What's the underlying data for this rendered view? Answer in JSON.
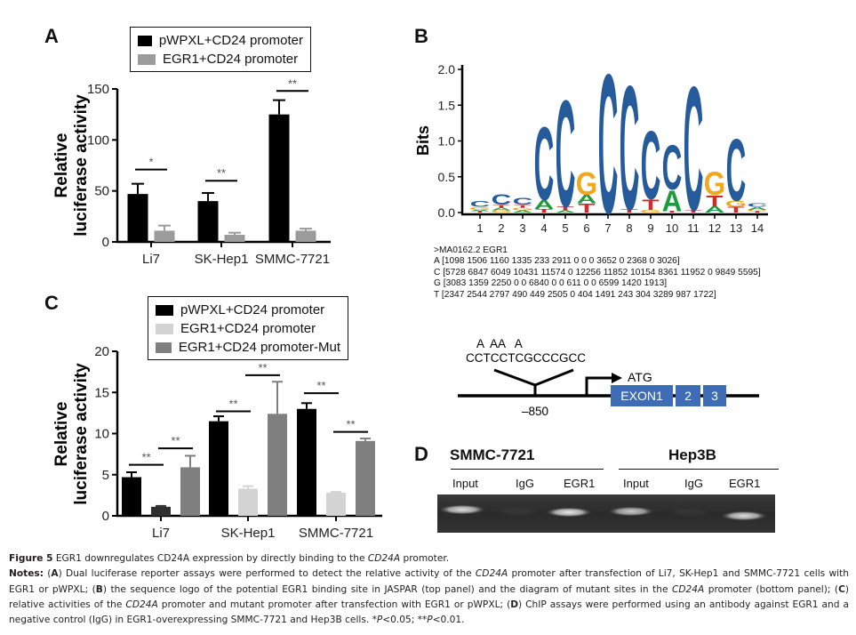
{
  "panels": {
    "A": {
      "letter": "A"
    },
    "B": {
      "letter": "B"
    },
    "C": {
      "letter": "C"
    },
    "D": {
      "letter": "D"
    }
  },
  "chart_data": [
    {
      "id": "A",
      "type": "bar",
      "title": "",
      "xlabel": "",
      "ylabel_line1": "Relative",
      "ylabel_line2": "luciferase activity",
      "ylim": [
        0,
        150
      ],
      "yticks": [
        0,
        50,
        100,
        150
      ],
      "categories": [
        "Li7",
        "SK-Hep1",
        "SMMC-7721"
      ],
      "legend_position": "top",
      "series": [
        {
          "name": "pWPXL+CD24 promoter",
          "color": "#000000",
          "values": [
            47,
            40,
            125
          ],
          "errors": [
            10,
            8,
            14
          ]
        },
        {
          "name": "EGR1+CD24 promoter",
          "color": "#9b9b9b",
          "values": [
            11,
            7,
            11
          ],
          "errors": [
            5,
            2,
            2
          ]
        }
      ],
      "significance": [
        {
          "category": 0,
          "label": "*",
          "y": 71
        },
        {
          "category": 1,
          "label": "**",
          "y": 60
        },
        {
          "category": 2,
          "label": "**",
          "y": 148
        }
      ]
    },
    {
      "id": "B",
      "type": "sequence-logo",
      "title": "",
      "ylabel": "Bits",
      "ylim": [
        0,
        2.0
      ],
      "yticks": [
        "0.0",
        "0.5",
        "1.0",
        "1.5",
        "2.0"
      ],
      "positions": [
        "1",
        "2",
        "3",
        "4",
        "5",
        "6",
        "7",
        "8",
        "9",
        "10",
        "11",
        "12",
        "13",
        "14"
      ],
      "colors": {
        "A": "#1f9a3c",
        "C": "#255a9b",
        "G": "#f0a81e",
        "T": "#d42a2a"
      },
      "stacks": [
        [
          [
            "T",
            0.02
          ],
          [
            "A",
            0.02
          ],
          [
            "G",
            0.04
          ],
          [
            "C",
            0.08
          ]
        ],
        [
          [
            "G",
            0.03
          ],
          [
            "A",
            0.04
          ],
          [
            "T",
            0.04
          ],
          [
            "C",
            0.15
          ]
        ],
        [
          [
            "A",
            0.03
          ],
          [
            "G",
            0.04
          ],
          [
            "T",
            0.04
          ],
          [
            "C",
            0.1
          ]
        ],
        [
          [
            "T",
            0.05
          ],
          [
            "A",
            0.13
          ],
          [
            "C",
            1.05
          ]
        ],
        [
          [
            "A",
            0.03
          ],
          [
            "T",
            0.06
          ],
          [
            "C",
            1.53
          ]
        ],
        [
          [
            "T",
            0.13
          ],
          [
            "A",
            0.12
          ],
          [
            "G",
            0.32
          ]
        ],
        [
          [
            "C",
            2.0
          ]
        ],
        [
          [
            "T",
            0.05
          ],
          [
            "C",
            1.78
          ]
        ],
        [
          [
            "G",
            0.04
          ],
          [
            "T",
            0.15
          ],
          [
            "C",
            0.98
          ]
        ],
        [
          [
            "T",
            0.02
          ],
          [
            "A",
            0.3
          ],
          [
            "C",
            0.64
          ]
        ],
        [
          [
            "T",
            0.04
          ],
          [
            "C",
            1.78
          ]
        ],
        [
          [
            "A",
            0.09
          ],
          [
            "T",
            0.16
          ],
          [
            "G",
            0.33
          ]
        ],
        [
          [
            "T",
            0.08
          ],
          [
            "G",
            0.09
          ],
          [
            "C",
            0.89
          ]
        ],
        [
          [
            "T",
            0.02
          ],
          [
            "G",
            0.02
          ],
          [
            "A",
            0.04
          ],
          [
            "C",
            0.05
          ]
        ]
      ]
    },
    {
      "id": "C",
      "type": "bar",
      "title": "",
      "xlabel": "",
      "ylabel_line1": "Relative",
      "ylabel_line2": "luciferase activity",
      "ylim": [
        0,
        20
      ],
      "yticks": [
        0,
        5,
        10,
        15,
        20
      ],
      "categories": [
        "Li7",
        "SK-Hep1",
        "SMMC-7721"
      ],
      "legend_position": "top",
      "series": [
        {
          "name": "pWPXL+CD24 promoter",
          "color": "#000000",
          "values": [
            4.7,
            11.5,
            13.0
          ],
          "errors": [
            0.6,
            0.6,
            0.7
          ]
        },
        {
          "name": "EGR1+CD24 promoter",
          "color": "#d3d3d3",
          "values": [
            1.1,
            3.3,
            2.8
          ],
          "errors": [
            0.1,
            0.3,
            0.1
          ]
        },
        {
          "name": "EGR1+CD24 promoter-Mut",
          "color": "#7f7f7f",
          "values": [
            5.9,
            12.4,
            9.1
          ],
          "errors": [
            1.4,
            3.9,
            0.3
          ]
        }
      ],
      "series_color_overrides": {
        "0-1": "#2f2f2f"
      },
      "significance": [
        {
          "from": [
            0,
            0
          ],
          "to": [
            0,
            1
          ],
          "label": "**",
          "y": 6.2
        },
        {
          "from": [
            0,
            1
          ],
          "to": [
            0,
            2
          ],
          "label": "**",
          "y": 8.2
        },
        {
          "from": [
            1,
            0
          ],
          "to": [
            1,
            1
          ],
          "label": "**",
          "y": 12.7
        },
        {
          "from": [
            1,
            1
          ],
          "to": [
            1,
            2
          ],
          "label": "**",
          "y": 17.1
        },
        {
          "from": [
            2,
            0
          ],
          "to": [
            2,
            1
          ],
          "label": "**",
          "y": 14.9
        },
        {
          "from": [
            2,
            1
          ],
          "to": [
            2,
            2
          ],
          "label": "**",
          "y": 10.2
        }
      ]
    }
  ],
  "matrix": {
    "header": ">MA0162.2 EGR1",
    "rows": [
      "A [1098 1506 1160 1335 233 2911 0 0 0 3652 0 2368 0 3026]",
      "C [5728 6847 6049 10431 11574 0 12256 11852 10154 8361 11952 0 9849 5595]",
      "G [3083 1359 2250 0 0 6840 0 0 611 0 0 6599 1420 1913]",
      "T [2347 2544 2797 490 449 2505 0 404 1491 243 304 3289 987 1722]"
    ]
  },
  "promoter_diagram": {
    "mutations": "A  AA   A",
    "sequence": "CCTCCTCGCCCGCC",
    "position_label": "–850",
    "atg_label": "ATG",
    "exons": [
      "EXON1",
      "2",
      "3"
    ],
    "exon_color": "#3e6db5"
  },
  "chip": {
    "groups": [
      {
        "name": "SMMC-7721",
        "lanes": [
          "Input",
          "IgG",
          "EGR1"
        ]
      },
      {
        "name": "Hep3B",
        "lanes": [
          "Input",
          "IgG",
          "EGR1"
        ]
      }
    ],
    "band_intensity": [
      0.85,
      0.05,
      0.9,
      0.75,
      0.05,
      0.85
    ]
  },
  "caption": {
    "figure_label": "Figure 5",
    "title": " EGR1 downregulates CD24A expression by directly binding to the ",
    "title_gene": "CD24A",
    "title_end": " promoter.",
    "notes_label": "Notes:",
    "notes_A_pre": " (",
    "notes_A_letter": "A",
    "notes_A_text": ") Dual luciferase reporter assays were performed to detect the relative activity of the ",
    "notes_A_gene": "CD24A",
    "notes_A_text2": " promoter after transfection of Li7, SK-Hep1 and SMMC-7721 cells with EGR1 or pWPXL; (",
    "notes_B_letter": "B",
    "notes_B_text": ") the sequence logo of the potential EGR1 binding site in JASPAR (top panel) and the diagram of mutant sites in the ",
    "notes_B_gene": "CD24A",
    "notes_B_text2": " promoter (bottom panel); (",
    "notes_C_letter": "C",
    "notes_C_text": ") relative activities of the ",
    "notes_C_gene": "CD24A",
    "notes_C_text2": " promoter and mutant promoter after transfection with EGR1 or pWPXL; (",
    "notes_D_letter": "D",
    "notes_D_text": ") ChIP assays were performed using an antibody against EGR1 and a negative control (IgG) in EGR1-overexpressing SMMC-7721 and Hep3B cells. *",
    "p1": "P",
    "p1_text": "<0.05; **",
    "p2": "P",
    "p2_text": "<0.01."
  }
}
